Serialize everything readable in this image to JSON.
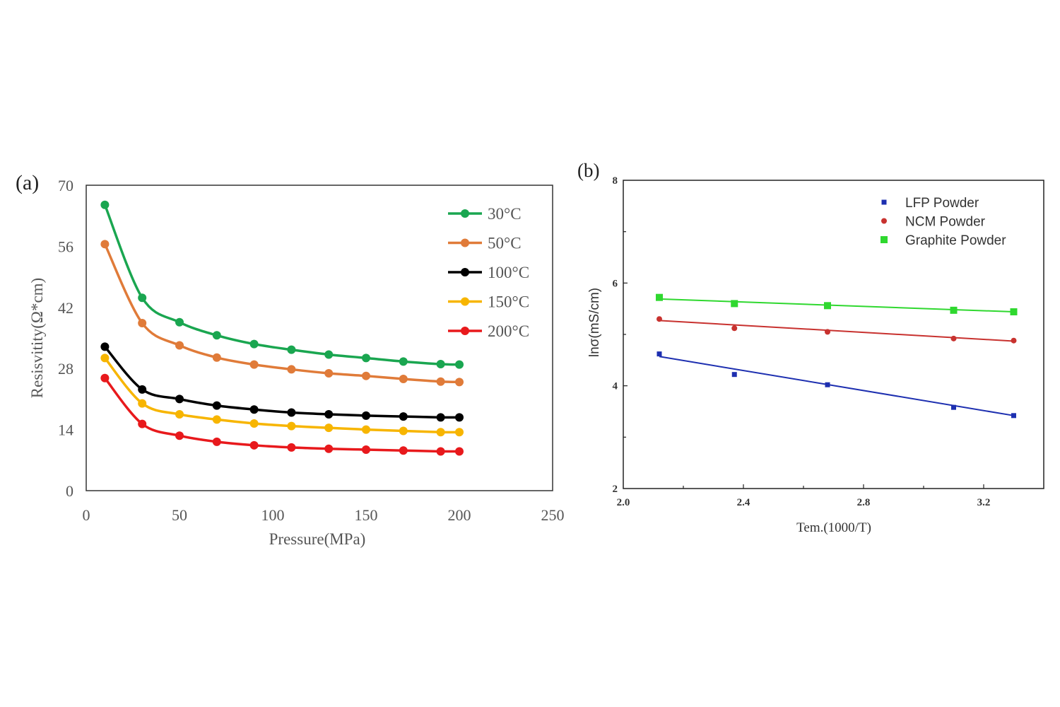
{
  "chart_data": [
    {
      "type": "line",
      "panel_label": "(a)",
      "title": "",
      "xlabel": "Pressure(MPa)",
      "ylabel": "Resisvitity(Ω*cm)",
      "xlim": [
        0,
        250
      ],
      "ylim": [
        0,
        70
      ],
      "xticks": [
        0,
        50,
        100,
        150,
        200,
        250
      ],
      "yticks": [
        0,
        14,
        28,
        42,
        56,
        70
      ],
      "grid": false,
      "legend_position": "top-right",
      "x": [
        10,
        30,
        50,
        70,
        90,
        110,
        130,
        150,
        170,
        190,
        200
      ],
      "series": [
        {
          "name": "30°C",
          "color": "#1aa650",
          "values": [
            65.5,
            44.2,
            38.6,
            35.6,
            33.6,
            32.3,
            31.2,
            30.4,
            29.6,
            29.0,
            28.9
          ]
        },
        {
          "name": "50°C",
          "color": "#e07b39",
          "values": [
            56.5,
            38.4,
            33.3,
            30.5,
            28.9,
            27.8,
            26.9,
            26.3,
            25.6,
            25.0,
            24.9
          ]
        },
        {
          "name": "100°C",
          "color": "#000000",
          "values": [
            33.0,
            23.2,
            21.0,
            19.5,
            18.6,
            17.9,
            17.5,
            17.2,
            17.0,
            16.8,
            16.8
          ]
        },
        {
          "name": "150°C",
          "color": "#f7b500",
          "values": [
            30.4,
            20.0,
            17.5,
            16.3,
            15.4,
            14.8,
            14.4,
            14.0,
            13.7,
            13.4,
            13.4
          ]
        },
        {
          "name": "200°C",
          "color": "#e8191c",
          "values": [
            25.8,
            15.3,
            12.6,
            11.2,
            10.4,
            9.9,
            9.6,
            9.4,
            9.2,
            9.0,
            9.0
          ]
        }
      ]
    },
    {
      "type": "scatter",
      "panel_label": "(b)",
      "title": "",
      "xlabel": "Tem.(1000/T)",
      "ylabel": "lnσ(mS/cm)",
      "xlim": [
        2.0,
        3.4
      ],
      "ylim": [
        2,
        8
      ],
      "xticks": [
        2.0,
        2.4,
        2.8,
        3.2
      ],
      "yticks": [
        2,
        4,
        6,
        8
      ],
      "grid": false,
      "legend_position": "top-right",
      "x": [
        2.12,
        2.37,
        2.68,
        3.1,
        3.3
      ],
      "series": [
        {
          "name": "LFP Powder",
          "color": "#1d2fb0",
          "values": [
            4.62,
            4.22,
            4.02,
            3.58,
            3.42
          ],
          "fit": [
            4.57,
            3.42
          ]
        },
        {
          "name": "NCM Powder",
          "color": "#c8322f",
          "values": [
            5.3,
            5.12,
            5.05,
            4.92,
            4.88
          ],
          "fit": [
            5.27,
            4.87
          ]
        },
        {
          "name": "Graphite Powder",
          "color": "#2fd82f",
          "values": [
            5.72,
            5.6,
            5.56,
            5.47,
            5.44
          ],
          "fit": [
            5.69,
            5.44
          ]
        }
      ]
    }
  ]
}
